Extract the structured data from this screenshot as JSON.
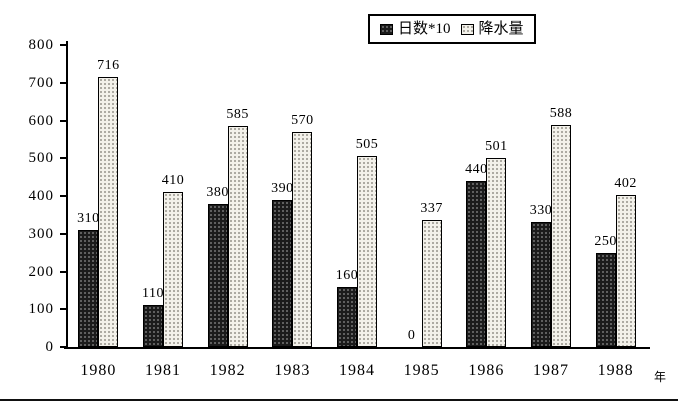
{
  "chart_data": {
    "type": "bar",
    "title": "",
    "categories": [
      "1980",
      "1981",
      "1982",
      "1983",
      "1984",
      "1985",
      "1986",
      "1987",
      "1988"
    ],
    "series": [
      {
        "name": "日数*10",
        "values": [
          310,
          110,
          380,
          390,
          160,
          0,
          440,
          330,
          250
        ]
      },
      {
        "name": "降水量",
        "values": [
          716,
          410,
          585,
          570,
          505,
          337,
          501,
          588,
          402
        ]
      }
    ],
    "xlabel": "年",
    "ylabel": "",
    "ylim": [
      0,
      800
    ],
    "ytick_step": 100,
    "ytick_labels": [
      "0",
      "100",
      "200",
      "300",
      "400",
      "500",
      "600",
      "700",
      "800"
    ],
    "grid": false,
    "legend_position": "top-center",
    "data_labels": true
  },
  "colors": {
    "background": "#ffffff",
    "axis": "#000000",
    "series1_fill": "#1b1b1b",
    "series2_fill": "#f3f1ea",
    "text": "#000000"
  }
}
